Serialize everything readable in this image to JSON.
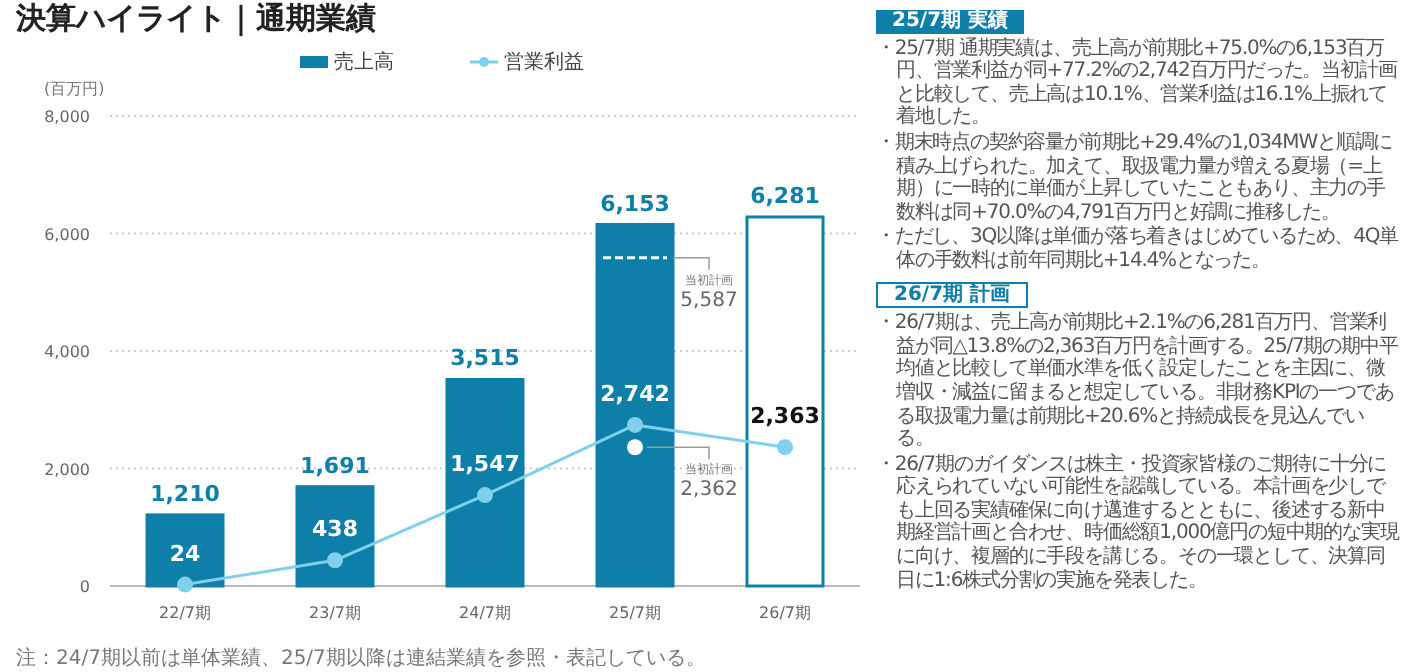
{
  "chart_data": {
    "type": "bar",
    "title": "決算ハイライト｜通期業績",
    "ylabel": "(百万円)",
    "categories": [
      "22/7期",
      "23/7期",
      "24/7期",
      "25/7期",
      "26/7期"
    ],
    "series": [
      {
        "name": "売上高",
        "color": "#0e7fa8",
        "colors": [
          "#0e7fa8",
          "#0e7fa8",
          "#0e7fa8",
          "#0e7fa8",
          "#ffffff"
        ],
        "values": [
          1210,
          1691,
          3515,
          6153,
          6281
        ],
        "value_labels": [
          "1,210",
          "1,691",
          "3,515",
          "6,153",
          "6,281"
        ]
      },
      {
        "name": "営業利益",
        "type": "line",
        "color": "#7fd0ec",
        "marker": "circle",
        "values": [
          24,
          438,
          1547,
          2742,
          2363
        ],
        "value_labels": [
          "24",
          "438",
          "1,547",
          "2,742",
          "2,363"
        ]
      },
      {
        "type": "scatter",
        "color": "#ffffff",
        "marker": "circle",
        "values": [
          null,
          null,
          null,
          2362,
          null
        ],
        "value_labels": [
          null,
          null,
          null,
          "2,362",
          null
        ]
      }
    ],
    "ylim": [
      0,
      8000
    ],
    "yticks": [
      {
        "value": 0,
        "label": "0"
      },
      {
        "value": 2000,
        "label": "2,000"
      },
      {
        "value": 4000,
        "label": "4,000"
      },
      {
        "value": 6000,
        "label": "6,000"
      },
      {
        "value": 8000,
        "label": "8,000"
      }
    ],
    "grid": "y",
    "legend": "top",
    "ref_lines": [
      {
        "axis": "y",
        "value": 5587,
        "label": "5,587",
        "color": "#ffffff",
        "line_style": "dashed"
      }
    ],
    "annotations": [
      "当初計画",
      {
        "text": "当初計画",
        "x": "25/7期",
        "y": 2362
      },
      "注：24/7期以前は単体業績、25/7期以降は連結業績を参照・表記している。",
      "25/7期 実績",
      "・25/7期 通期実績は、売上高が前期比+75.0%の6,153百万円、営業利益が同+77.2%の2,742百万円だった。当初計画と比較して、売上高は10.1%、営業利益は16.1%上振れて着地した。",
      "・期末時点の契約容量が前期比+29.4%の1,034MWと順調に積み上げられた。加えて、取扱電力量が増える夏場（=上期）に一時的に単価が上昇していたこともあり、主力の手数料は同+70.0%の4,791百万円と好調に推移した。",
      "・ただし、3Q以降は単価が落ち着きはじめているため、4Q単体の手数料は前年同期比+14.4%となった。",
      "26/7期 計画",
      "・26/7期は、売上高が前期比+2.1%の6,281百万円、営業利益が同△13.8%の2,363百万円を計画する。25/7期の期中平均値と比較して単価水準を低く設定したことを主因に、微増収・減益に留まると想定している。非財務KPIの一つである取扱電力量は前期比+20.6%と持続成長を見込んでいる。",
      "・26/7期のガイダンスは株主・投資家皆様のご期待に十分に応えられていない可能性を認識している。本計画を少しでも上回る実績確保に向け邁進するとともに、後述する新中期経営計画と合わせ、時価総額1,000億円の短中期的な実現に向け、複層的に手段を講じる。その一環として、決算同日に1:6株式分割の実施を発表した。"
    ]
  }
}
